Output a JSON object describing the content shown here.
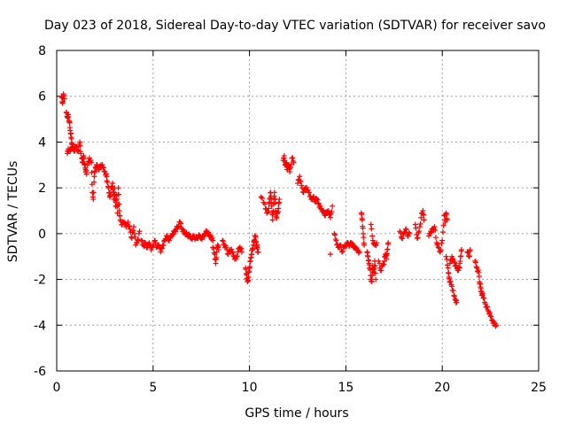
{
  "chart_data": {
    "type": "scatter",
    "title": "Day 023 of 2018, Sidereal Day-to-day VTEC variation (SDTVAR) for receiver savo",
    "xlabel": "GPS time / hours",
    "ylabel": "SDTVAR / TECUs",
    "xlim": [
      0,
      25
    ],
    "ylim": [
      -6,
      8
    ],
    "xticks": [
      0,
      5,
      10,
      15,
      20,
      25
    ],
    "yticks": [
      -6,
      -4,
      -2,
      0,
      2,
      4,
      6,
      8
    ],
    "xtick_labels": [
      "0",
      "5",
      "10",
      "15",
      "20",
      "25"
    ],
    "ytick_labels": [
      "-6",
      "-4",
      "-2",
      "0",
      "2",
      "4",
      "6",
      "8"
    ],
    "grid": true,
    "marker": "plus",
    "color": "#ff0000",
    "segments": [
      [
        [
          0.25,
          6.0
        ],
        [
          0.3,
          5.7
        ],
        [
          0.35,
          6.1
        ],
        [
          0.4,
          5.9
        ]
      ],
      [
        [
          0.5,
          5.3
        ],
        [
          0.55,
          5.1
        ],
        [
          0.6,
          5.2
        ],
        [
          0.65,
          4.9
        ],
        [
          0.7,
          4.5
        ],
        [
          0.75,
          4.2
        ],
        [
          0.8,
          3.9
        ],
        [
          0.85,
          3.7
        ]
      ],
      [
        [
          0.55,
          3.5
        ],
        [
          0.6,
          3.7
        ],
        [
          0.7,
          3.6
        ],
        [
          0.8,
          3.9
        ],
        [
          0.9,
          3.6
        ],
        [
          1.0,
          3.8
        ],
        [
          1.1,
          3.6
        ],
        [
          1.2,
          4.0
        ],
        [
          1.25,
          3.5
        ]
      ],
      [
        [
          1.3,
          3.3
        ],
        [
          1.35,
          3.1
        ],
        [
          1.4,
          3.4
        ],
        [
          1.45,
          3.0
        ],
        [
          1.5,
          2.8
        ],
        [
          1.55,
          2.6
        ]
      ],
      [
        [
          1.6,
          3.0
        ],
        [
          1.7,
          3.3
        ],
        [
          1.8,
          3.1
        ],
        [
          1.85,
          1.8
        ],
        [
          1.9,
          1.5
        ],
        [
          1.95,
          2.5
        ],
        [
          2.0,
          2.9
        ],
        [
          2.1,
          3.0
        ],
        [
          2.2,
          2.8
        ],
        [
          2.3,
          3.0
        ],
        [
          2.4,
          2.9
        ],
        [
          2.5,
          2.7
        ],
        [
          2.6,
          2.5
        ]
      ],
      [
        [
          2.6,
          2.3
        ],
        [
          2.7,
          2.0
        ],
        [
          2.75,
          1.6
        ],
        [
          2.8,
          1.8
        ],
        [
          2.9,
          2.2
        ],
        [
          2.95,
          1.5
        ],
        [
          3.0,
          2.0
        ],
        [
          3.05,
          1.2
        ],
        [
          3.1,
          1.7
        ],
        [
          3.15,
          0.9
        ],
        [
          3.2,
          2.0
        ],
        [
          3.25,
          1.0
        ],
        [
          3.3,
          0.6
        ],
        [
          3.4,
          0.4
        ],
        [
          3.5,
          0.5
        ],
        [
          3.6,
          0.3
        ],
        [
          3.7,
          0.5
        ],
        [
          3.8,
          0.2
        ],
        [
          3.9,
          -0.2
        ],
        [
          4.0,
          0.3
        ],
        [
          4.1,
          -0.5
        ],
        [
          4.2,
          -0.3
        ],
        [
          4.3,
          0.1
        ]
      ],
      [
        [
          4.4,
          -0.3
        ],
        [
          4.5,
          -0.5
        ],
        [
          4.6,
          -0.4
        ],
        [
          4.7,
          -0.6
        ],
        [
          4.8,
          -0.4
        ],
        [
          4.9,
          -0.7
        ],
        [
          5.0,
          -0.5
        ],
        [
          5.1,
          -0.3
        ],
        [
          5.2,
          -0.6
        ],
        [
          5.3,
          -0.5
        ],
        [
          5.4,
          -0.8
        ],
        [
          5.5,
          -0.5
        ],
        [
          5.6,
          -0.3
        ],
        [
          5.7,
          -0.1
        ],
        [
          5.8,
          -0.3
        ],
        [
          5.9,
          -0.2
        ],
        [
          6.0,
          0.0
        ],
        [
          6.1,
          0.1
        ],
        [
          6.2,
          0.2
        ],
        [
          6.3,
          0.3
        ],
        [
          6.4,
          0.5
        ],
        [
          6.5,
          0.2
        ],
        [
          6.6,
          0.1
        ],
        [
          6.7,
          0.0
        ],
        [
          6.8,
          -0.1
        ],
        [
          6.9,
          -0.1
        ],
        [
          7.0,
          -0.2
        ],
        [
          7.1,
          -0.1
        ],
        [
          7.2,
          -0.2
        ],
        [
          7.3,
          -0.2
        ],
        [
          7.4,
          -0.1
        ],
        [
          7.5,
          -0.2
        ],
        [
          7.6,
          -0.1
        ],
        [
          7.7,
          0.0
        ],
        [
          7.8,
          0.1
        ],
        [
          7.9,
          -0.1
        ],
        [
          8.0,
          -0.1
        ],
        [
          8.1,
          -0.3
        ]
      ],
      [
        [
          8.1,
          -0.6
        ],
        [
          8.2,
          -0.9
        ],
        [
          8.25,
          -1.3
        ],
        [
          8.3,
          -0.8
        ],
        [
          8.35,
          -0.5
        ],
        [
          8.4,
          -0.7
        ]
      ],
      [
        [
          8.6,
          -0.3
        ],
        [
          8.7,
          -0.5
        ],
        [
          8.8,
          -0.6
        ],
        [
          8.9,
          -0.9
        ],
        [
          9.0,
          -0.7
        ],
        [
          9.1,
          -0.8
        ],
        [
          9.2,
          -1.0
        ],
        [
          9.3,
          -1.1
        ],
        [
          9.4,
          -0.8
        ],
        [
          9.5,
          -0.6
        ],
        [
          9.6,
          -0.8
        ]
      ],
      [
        [
          9.8,
          -1.5
        ],
        [
          9.85,
          -1.8
        ],
        [
          9.9,
          -2.1
        ],
        [
          9.95,
          -1.9
        ],
        [
          10.0,
          -1.5
        ],
        [
          10.05,
          -1.2
        ],
        [
          10.1,
          -0.9
        ],
        [
          10.15,
          -0.7
        ],
        [
          10.2,
          -0.5
        ],
        [
          10.25,
          -0.3
        ],
        [
          10.3,
          -0.1
        ],
        [
          10.35,
          -0.4
        ],
        [
          10.4,
          -0.6
        ],
        [
          10.45,
          -0.8
        ]
      ],
      [
        [
          10.6,
          1.6
        ],
        [
          10.8,
          1.3
        ],
        [
          10.9,
          0.9
        ],
        [
          11.0,
          1.1
        ],
        [
          11.05,
          1.5
        ],
        [
          11.1,
          1.8
        ],
        [
          11.15,
          1.2
        ],
        [
          11.2,
          0.6
        ],
        [
          11.25,
          1.3
        ],
        [
          11.3,
          1.8
        ],
        [
          11.35,
          1.0
        ],
        [
          11.4,
          0.7
        ],
        [
          11.45,
          0.9
        ],
        [
          11.5,
          1.1
        ],
        [
          11.55,
          1.5
        ]
      ],
      [
        [
          11.75,
          3.2
        ],
        [
          11.8,
          3.4
        ],
        [
          11.85,
          3.0
        ],
        [
          11.9,
          3.1
        ],
        [
          11.95,
          2.8
        ],
        [
          12.0,
          2.9
        ],
        [
          12.05,
          3.0
        ],
        [
          12.1,
          2.7
        ],
        [
          12.2,
          3.3
        ],
        [
          12.3,
          3.1
        ]
      ],
      [
        [
          12.5,
          2.2
        ],
        [
          12.6,
          2.5
        ],
        [
          12.7,
          2.1
        ],
        [
          12.8,
          1.8
        ],
        [
          12.9,
          2.0
        ],
        [
          13.0,
          1.9
        ],
        [
          13.1,
          1.8
        ],
        [
          13.2,
          1.5
        ],
        [
          13.3,
          1.6
        ],
        [
          13.4,
          1.4
        ],
        [
          13.5,
          1.5
        ],
        [
          13.6,
          1.3
        ],
        [
          13.7,
          1.1
        ],
        [
          13.8,
          1.0
        ],
        [
          13.9,
          0.8
        ],
        [
          14.0,
          0.9
        ],
        [
          14.1,
          1.0
        ],
        [
          14.2,
          0.7
        ],
        [
          14.3,
          1.2
        ]
      ],
      [
        [
          14.2,
          -0.9
        ]
      ],
      [
        [
          14.4,
          0.0
        ],
        [
          14.5,
          -0.3
        ],
        [
          14.6,
          -0.6
        ],
        [
          14.7,
          -0.5
        ],
        [
          14.8,
          -0.8
        ],
        [
          14.9,
          -0.6
        ],
        [
          15.0,
          -0.5
        ],
        [
          15.1,
          -0.4
        ],
        [
          15.2,
          -0.5
        ],
        [
          15.3,
          -0.4
        ],
        [
          15.4,
          -0.6
        ],
        [
          15.5,
          -0.6
        ],
        [
          15.6,
          -0.7
        ],
        [
          15.7,
          -0.8
        ]
      ],
      [
        [
          15.8,
          0.9
        ],
        [
          15.85,
          0.6
        ],
        [
          15.9,
          0.0
        ],
        [
          15.95,
          -0.5
        ]
      ],
      [
        [
          16.1,
          -0.8
        ],
        [
          16.15,
          -1.0
        ],
        [
          16.2,
          -1.3
        ],
        [
          16.25,
          -1.5
        ],
        [
          16.3,
          -2.0
        ],
        [
          16.35,
          -2.1
        ],
        [
          16.4,
          -1.4
        ],
        [
          16.45,
          -1.7
        ],
        [
          16.5,
          -1.2
        ],
        [
          16.55,
          -2.0
        ]
      ],
      [
        [
          16.3,
          0.4
        ],
        [
          16.4,
          -0.3
        ],
        [
          16.5,
          -0.5
        ],
        [
          16.6,
          -0.4
        ]
      ],
      [
        [
          16.7,
          -1.2
        ],
        [
          16.8,
          -1.6
        ],
        [
          16.9,
          -1.4
        ],
        [
          17.0,
          -1.2
        ],
        [
          17.05,
          -0.9
        ],
        [
          17.1,
          -1.1
        ],
        [
          17.15,
          -0.7
        ],
        [
          17.2,
          -0.4
        ]
      ],
      [
        [
          17.8,
          0.1
        ],
        [
          17.9,
          -0.2
        ],
        [
          18.0,
          0.0
        ],
        [
          18.1,
          0.2
        ],
        [
          18.2,
          -0.1
        ],
        [
          18.3,
          0.0
        ]
      ],
      [
        [
          18.6,
          0.4
        ],
        [
          18.7,
          -0.2
        ],
        [
          18.8,
          0.1
        ],
        [
          18.9,
          0.7
        ],
        [
          19.0,
          1.0
        ],
        [
          19.05,
          0.6
        ]
      ],
      [
        [
          19.3,
          -0.1
        ],
        [
          19.4,
          0.1
        ],
        [
          19.5,
          0.2
        ],
        [
          19.6,
          0.3
        ],
        [
          19.7,
          -0.4
        ],
        [
          19.8,
          -0.6
        ],
        [
          19.9,
          -0.8
        ],
        [
          20.0,
          -0.3
        ],
        [
          20.1,
          0.8
        ],
        [
          20.15,
          0.5
        ],
        [
          20.2,
          0.9
        ],
        [
          20.25,
          0.6
        ]
      ],
      [
        [
          20.2,
          -1.0
        ],
        [
          20.3,
          -1.5
        ],
        [
          20.35,
          -1.9
        ],
        [
          20.4,
          -2.1
        ],
        [
          20.5,
          -2.3
        ],
        [
          20.6,
          -2.7
        ],
        [
          20.7,
          -2.9
        ],
        [
          20.75,
          -3.0
        ]
      ],
      [
        [
          20.4,
          -1.3
        ],
        [
          20.5,
          -1.0
        ],
        [
          20.6,
          -1.2
        ],
        [
          20.7,
          -1.4
        ],
        [
          20.8,
          -1.6
        ],
        [
          20.9,
          -1.5
        ],
        [
          20.95,
          -1.0
        ],
        [
          21.0,
          -0.7
        ]
      ],
      [
        [
          21.3,
          -0.8
        ],
        [
          21.4,
          -1.0
        ],
        [
          21.45,
          -0.7
        ]
      ],
      [
        [
          21.7,
          -1.2
        ],
        [
          21.8,
          -1.5
        ],
        [
          21.9,
          -1.7
        ],
        [
          21.95,
          -2.2
        ],
        [
          22.0,
          -2.4
        ],
        [
          22.05,
          -2.7
        ],
        [
          22.1,
          -2.6
        ],
        [
          22.2,
          -3.0
        ],
        [
          22.3,
          -3.2
        ],
        [
          22.4,
          -3.4
        ],
        [
          22.5,
          -3.6
        ],
        [
          22.6,
          -3.8
        ],
        [
          22.7,
          -3.9
        ],
        [
          22.8,
          -4.0
        ]
      ]
    ]
  }
}
